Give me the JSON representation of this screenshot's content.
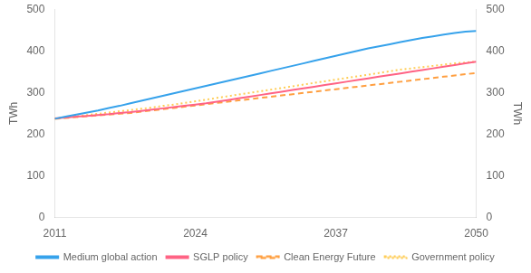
{
  "chart_data": {
    "type": "line",
    "x": [
      2011,
      2012,
      2013,
      2014,
      2015,
      2016,
      2017,
      2018,
      2019,
      2020,
      2021,
      2022,
      2023,
      2024,
      2025,
      2026,
      2027,
      2028,
      2029,
      2030,
      2031,
      2032,
      2033,
      2034,
      2035,
      2036,
      2037,
      2038,
      2039,
      2040,
      2041,
      2042,
      2043,
      2044,
      2045,
      2046,
      2047,
      2048,
      2049,
      2050
    ],
    "series": [
      {
        "name": "Medium global action",
        "line_style": "solid",
        "values": [
          237,
          242,
          247,
          252,
          257,
          263,
          268,
          274,
          280,
          286,
          292,
          298,
          304,
          310,
          316,
          322,
          328,
          334,
          340,
          346,
          352,
          358,
          364,
          370,
          376,
          382,
          388,
          394,
          400,
          406,
          411,
          416,
          421,
          426,
          431,
          435,
          439,
          443,
          446,
          448
        ]
      },
      {
        "name": "SGLP policy",
        "line_style": "solid",
        "values": [
          238,
          240,
          242,
          244,
          246,
          248,
          251,
          253,
          256,
          259,
          262,
          265,
          268,
          271,
          274,
          278,
          282,
          286,
          290,
          294,
          298,
          302,
          306,
          310,
          314,
          318,
          322,
          326,
          330,
          334,
          338,
          342,
          346,
          350,
          354,
          358,
          362,
          366,
          370,
          374
        ]
      },
      {
        "name": "Clean Energy Future",
        "line_style": "dashed",
        "values": [
          237,
          239,
          241,
          243,
          245,
          247,
          249,
          251,
          254,
          257,
          260,
          263,
          266,
          269,
          272,
          275,
          278,
          281,
          284,
          287,
          290,
          293,
          296,
          299,
          302,
          305,
          308,
          311,
          314,
          317,
          320,
          323,
          326,
          329,
          332,
          335,
          338,
          341,
          344,
          347
        ]
      },
      {
        "name": "Government policy",
        "line_style": "dotted",
        "values": [
          238,
          240,
          243,
          246,
          249,
          252,
          255,
          258,
          261,
          264,
          268,
          271,
          275,
          279,
          283,
          287,
          291,
          295,
          299,
          303,
          307,
          311,
          315,
          319,
          323,
          327,
          331,
          335,
          339,
          343,
          347,
          351,
          355,
          358,
          361,
          364,
          367,
          370,
          372,
          374
        ]
      }
    ],
    "xlim": [
      2011,
      2050
    ],
    "xticks": [
      2011,
      2024,
      2037,
      2050
    ],
    "ylim": [
      0,
      500
    ],
    "yticks": [
      0,
      100,
      200,
      300,
      400,
      500
    ],
    "y2lim": [
      0,
      500
    ],
    "y2ticks": [
      0,
      100,
      200,
      300,
      400,
      500
    ],
    "ylabel": "TWh",
    "y2label": "TWh",
    "grid": false,
    "legend": "bottom"
  }
}
